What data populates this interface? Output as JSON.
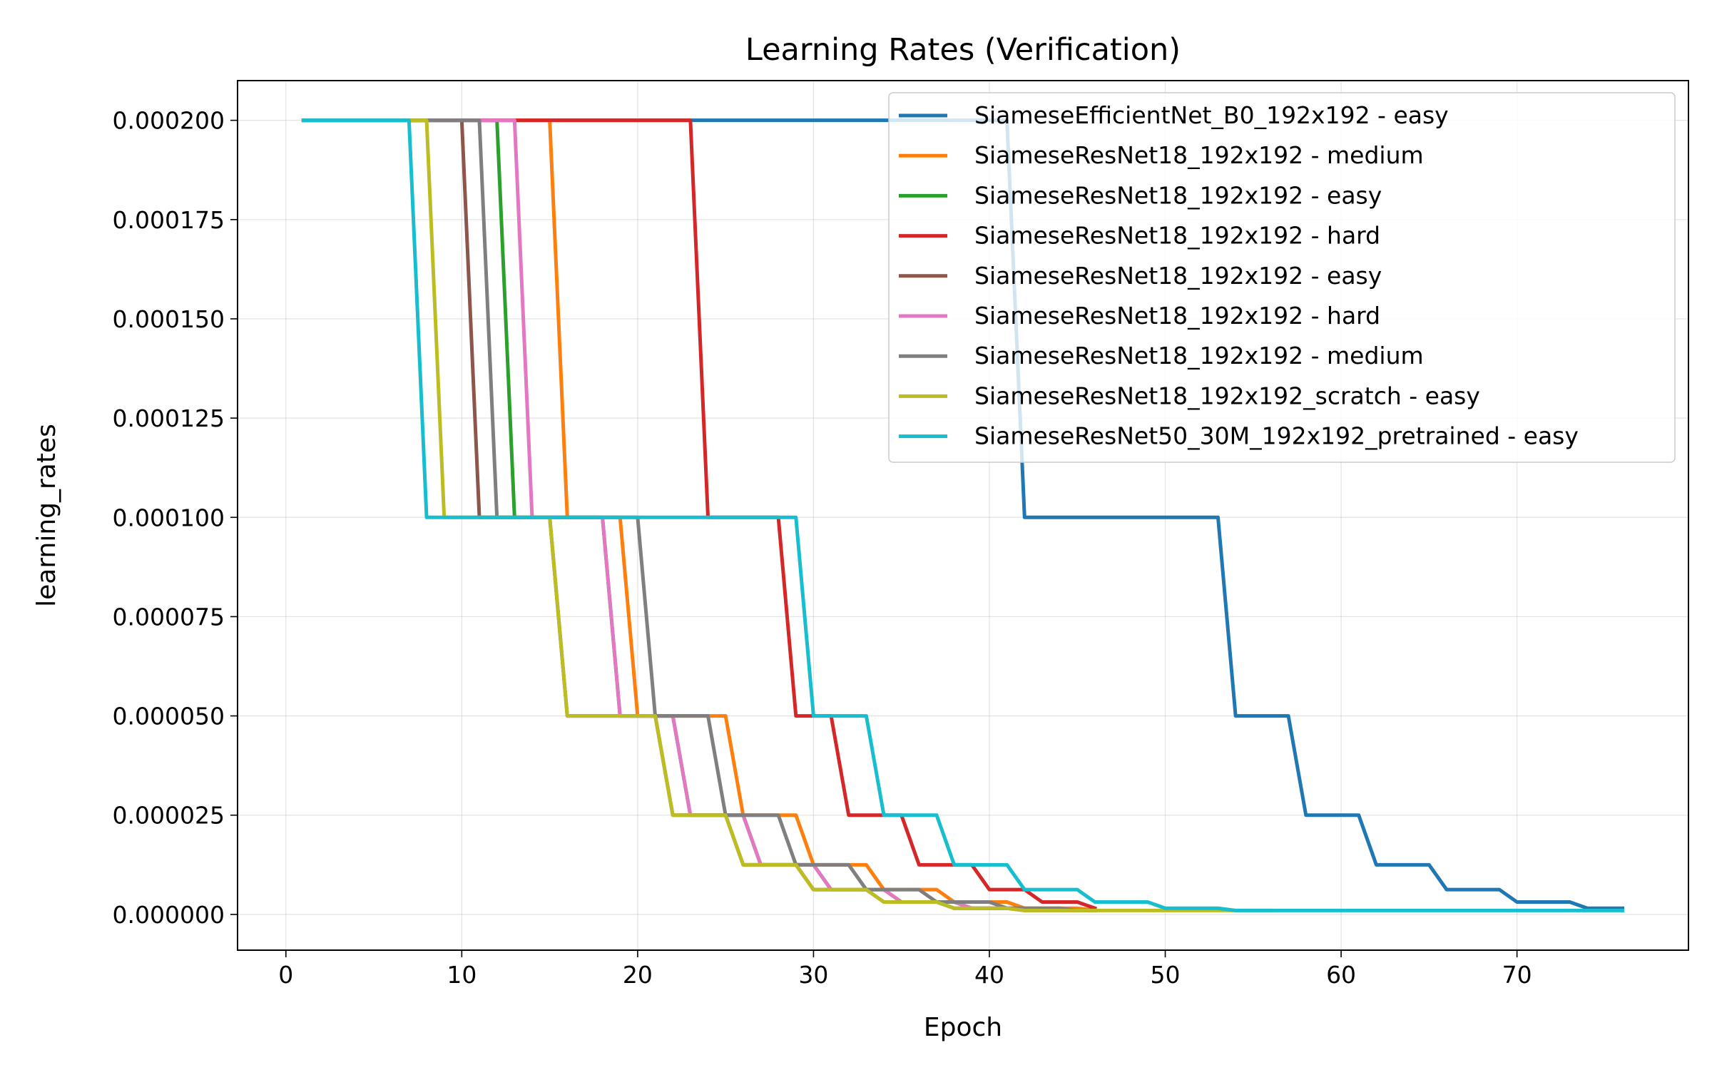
{
  "chart_data": {
    "type": "line",
    "title": "Learning Rates (Verification)",
    "xlabel": "Epoch",
    "ylabel": "learning_rates",
    "xlim": [
      -2.75,
      79.75
    ],
    "ylim": [
      -9e-06,
      0.00021
    ],
    "xticks": [
      0,
      10,
      20,
      30,
      40,
      50,
      60,
      70
    ],
    "yticks": [
      0.0,
      2.5e-05,
      5e-05,
      7.5e-05,
      0.0001,
      0.000125,
      0.00015,
      0.000175,
      0.0002
    ],
    "ytick_labels": [
      "0.000000",
      "0.000025",
      "0.000050",
      "0.000075",
      "0.000100",
      "0.000125",
      "0.000150",
      "0.000175",
      "0.000200"
    ],
    "grid": true,
    "legend_position": "top-right",
    "series": [
      {
        "name": "SiameseEfficientNet_B0_192x192 - easy",
        "color": "#1f77b4",
        "start": 1,
        "end": 76,
        "drops": [
          42,
          54,
          58,
          62,
          66,
          70,
          74
        ]
      },
      {
        "name": "SiameseResNet18_192x192 - medium",
        "color": "#ff7f0e",
        "start": 1,
        "end": 46,
        "drops": [
          16,
          20,
          26,
          30,
          34,
          38,
          42,
          46
        ]
      },
      {
        "name": "SiameseResNet18_192x192 - easy",
        "color": "#2ca02c",
        "start": 1,
        "end": 46,
        "drops": [
          13,
          19,
          23,
          27,
          31,
          35,
          39,
          43
        ]
      },
      {
        "name": "SiameseResNet18_192x192 - hard",
        "color": "#d62728",
        "start": 1,
        "end": 46,
        "drops": [
          24,
          29,
          32,
          36,
          40,
          43,
          46
        ]
      },
      {
        "name": "SiameseResNet18_192x192 - easy",
        "color": "#8c564b",
        "start": 1,
        "end": 46,
        "drops": [
          11,
          16,
          22,
          26,
          30,
          34,
          38,
          42
        ]
      },
      {
        "name": "SiameseResNet18_192x192 - hard",
        "color": "#e377c2",
        "start": 1,
        "end": 46,
        "drops": [
          14,
          19,
          23,
          27,
          31,
          35,
          39,
          43
        ]
      },
      {
        "name": "SiameseResNet18_192x192 - medium",
        "color": "#7f7f7f",
        "start": 1,
        "end": 46,
        "drops": [
          12,
          21,
          25,
          29,
          33,
          37,
          41,
          45
        ]
      },
      {
        "name": "SiameseResNet18_192x192_scratch - easy",
        "color": "#bcbd22",
        "start": 1,
        "end": 56,
        "drops": [
          9,
          16,
          22,
          26,
          30,
          34,
          38,
          42,
          46
        ]
      },
      {
        "name": "SiameseResNet50_30M_192x192_pretrained - easy",
        "color": "#17becf",
        "start": 1,
        "end": 76,
        "drops": [
          8,
          30,
          34,
          38,
          42,
          46,
          50,
          54
        ]
      }
    ],
    "initial_lr": 0.0002,
    "min_lr": 1e-06
  }
}
